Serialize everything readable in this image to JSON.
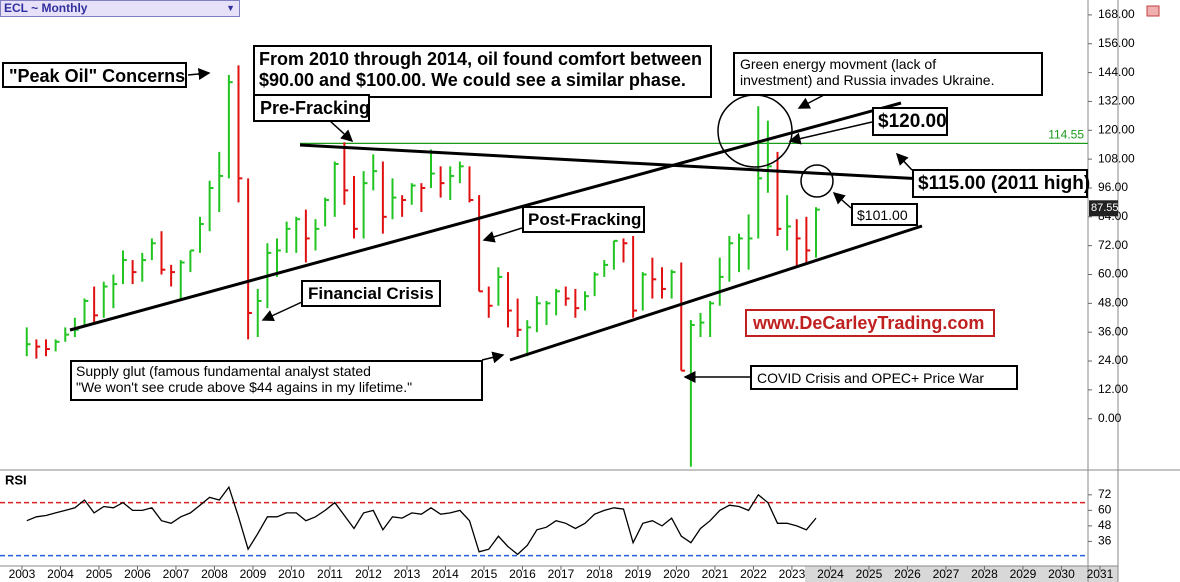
{
  "chart_data": {
    "type": "ohlc",
    "title": "ECL ~ Monthly",
    "x": [
      2003.125,
      2003.375,
      2003.625,
      2003.875,
      2004.125,
      2004.375,
      2004.625,
      2004.875,
      2005.125,
      2005.375,
      2005.625,
      2005.875,
      2006.125,
      2006.375,
      2006.625,
      2006.875,
      2007.125,
      2007.375,
      2007.625,
      2007.875,
      2008.125,
      2008.375,
      2008.625,
      2008.875,
      2009.125,
      2009.375,
      2009.625,
      2009.875,
      2010.125,
      2010.375,
      2010.625,
      2010.875,
      2011.125,
      2011.375,
      2011.625,
      2011.875,
      2012.125,
      2012.375,
      2012.625,
      2012.875,
      2013.125,
      2013.375,
      2013.625,
      2013.875,
      2014.125,
      2014.375,
      2014.625,
      2014.875,
      2015.125,
      2015.375,
      2015.625,
      2015.875,
      2016.125,
      2016.375,
      2016.625,
      2016.875,
      2017.125,
      2017.375,
      2017.625,
      2017.875,
      2018.125,
      2018.375,
      2018.625,
      2018.875,
      2019.125,
      2019.375,
      2019.625,
      2019.875,
      2020.125,
      2020.375,
      2020.625,
      2020.875,
      2021.125,
      2021.375,
      2021.625,
      2021.875,
      2022.125,
      2022.375,
      2022.625,
      2022.875,
      2023.125,
      2023.375,
      2023.625
    ],
    "high": [
      38,
      33,
      33,
      33,
      38,
      42,
      50,
      55,
      57,
      60,
      70,
      66,
      69,
      75,
      78,
      64,
      66,
      70,
      84,
      99,
      111,
      143,
      147,
      100,
      54,
      73,
      75,
      82,
      84,
      87,
      83,
      92,
      107,
      115,
      101,
      103,
      110,
      107,
      100,
      93,
      98,
      98,
      112,
      105,
      105,
      107,
      105,
      93,
      55,
      63,
      61,
      50,
      41,
      51,
      49,
      54,
      55,
      54,
      53,
      61,
      66,
      74,
      75,
      76,
      61,
      67,
      63,
      62,
      65,
      41,
      44,
      49,
      67,
      76,
      77,
      85,
      130,
      124,
      111,
      93,
      83,
      84,
      88
    ],
    "low": [
      26,
      25,
      26,
      28,
      32,
      34,
      38,
      40,
      42,
      46,
      56,
      56,
      57,
      66,
      60,
      55,
      50,
      61,
      69,
      78,
      86,
      100,
      90,
      33,
      34,
      46,
      59,
      69,
      69,
      65,
      70,
      80,
      84,
      89,
      75,
      75,
      95,
      77,
      83,
      84,
      89,
      86,
      96,
      92,
      91,
      98,
      90,
      53,
      42,
      47,
      38,
      34,
      26,
      36,
      39,
      43,
      47,
      42,
      45,
      51,
      59,
      62,
      65,
      42,
      45,
      50,
      50,
      50,
      20,
      -20,
      34,
      34,
      47,
      57,
      61,
      62,
      75,
      94,
      76,
      70,
      63,
      64,
      67
    ],
    "close": [
      31,
      30,
      29,
      32,
      35,
      37,
      49,
      43,
      55,
      56,
      66,
      61,
      66,
      73,
      62,
      61,
      65,
      70,
      81,
      96,
      101,
      140,
      100,
      44,
      49,
      69,
      70,
      79,
      83,
      75,
      79,
      91,
      106,
      95,
      79,
      98,
      103,
      84,
      92,
      91,
      97,
      96,
      102,
      98,
      101,
      105,
      91,
      53,
      47,
      59,
      45,
      37,
      38,
      48,
      48,
      53,
      50,
      46,
      51,
      60,
      64,
      74,
      73,
      45,
      60,
      58,
      54,
      61,
      20,
      39,
      40,
      48,
      59,
      73,
      75,
      75,
      100,
      105,
      79,
      80,
      75,
      70,
      87
    ],
    "up_color": "#22c422",
    "down_color": "#e01010",
    "xlim": [
      2002.43,
      2030.69
    ],
    "xticks": [
      2003,
      2004,
      2005,
      2006,
      2007,
      2008,
      2009,
      2010,
      2011,
      2012,
      2013,
      2014,
      2015,
      2016,
      2017,
      2018,
      2019,
      2020,
      2021,
      2022,
      2023,
      2024,
      2025,
      2026,
      2027,
      2028,
      2029,
      2030,
      2031
    ],
    "ylim": [
      -20.5,
      174.2
    ],
    "yticks": [
      {
        "value": 0,
        "label": "0.00"
      },
      {
        "value": 12,
        "label": "12.00"
      },
      {
        "value": 24,
        "label": "24.00"
      },
      {
        "value": 36,
        "label": "36.00"
      },
      {
        "value": 48,
        "label": "48.00"
      },
      {
        "value": 60,
        "label": "60.00"
      },
      {
        "value": 72,
        "label": "72.00"
      },
      {
        "value": 84,
        "label": "84.00"
      },
      {
        "value": 96,
        "label": "96.00"
      },
      {
        "value": 108,
        "label": "108.00"
      },
      {
        "value": 120,
        "label": "120.00"
      },
      {
        "value": 132,
        "label": "132.00"
      },
      {
        "value": 144,
        "label": "144.00"
      },
      {
        "value": 156,
        "label": "156.00"
      },
      {
        "value": 168,
        "label": "168.00"
      }
    ],
    "level_line": {
      "value": 114.55,
      "color": "#1a9a1a"
    },
    "last_price": 87.55,
    "rsi": {
      "title": "RSI",
      "values": [
        52,
        55,
        56,
        58,
        60,
        62,
        68,
        58,
        63,
        62,
        66,
        60,
        60,
        62,
        52,
        50,
        55,
        58,
        64,
        70,
        68,
        78,
        55,
        30,
        42,
        55,
        55,
        58,
        58,
        52,
        55,
        60,
        66,
        56,
        46,
        58,
        60,
        45,
        55,
        54,
        58,
        57,
        62,
        57,
        58,
        60,
        52,
        28,
        30,
        40,
        32,
        26,
        33,
        45,
        47,
        52,
        50,
        46,
        50,
        57,
        60,
        62,
        61,
        35,
        50,
        52,
        48,
        54,
        40,
        35,
        46,
        52,
        60,
        64,
        63,
        60,
        72,
        66,
        50,
        50,
        48,
        45,
        54
      ],
      "ylim": [
        17,
        85
      ],
      "yticks": [
        36,
        48,
        60,
        72
      ],
      "overbought": 66,
      "oversold": 25
    },
    "annotations": [
      "\"Peak Oil\" Concerns",
      [
        "From 2010 through 2014, oil found comfort between",
        "$90.00 and $100.00. We could see a similar phase."
      ],
      "Pre-Fracking",
      [
        "Green energy movment (lack of",
        "investment) and Russia invades Ukraine."
      ],
      "$120.00",
      "$115.00 (2011 high)",
      "$101.00",
      "Post-Fracking",
      "Financial Crisis",
      "www.DeCarleyTrading.com",
      [
        "Supply glut (famous fundamental analyst stated",
        "\"We won't see crude above $44 agains in my lifetime.\""
      ],
      "COVID Crisis and OPEC+ Price War"
    ]
  }
}
